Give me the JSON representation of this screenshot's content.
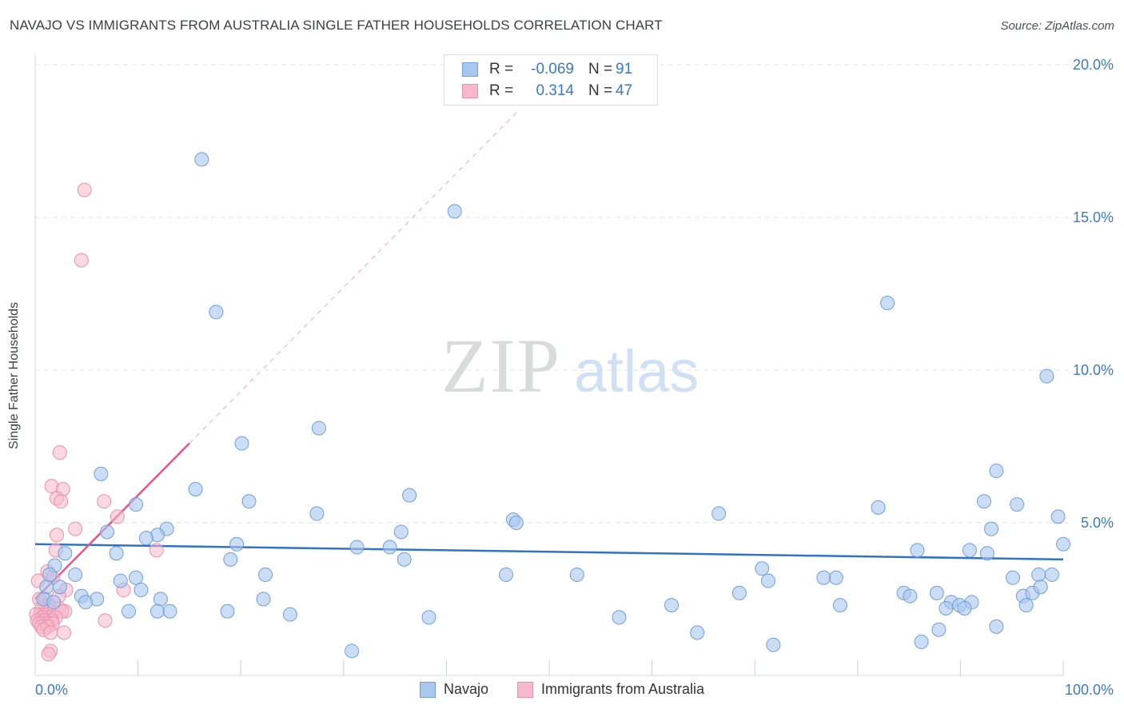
{
  "title": "NAVAJO VS IMMIGRANTS FROM AUSTRALIA SINGLE FATHER HOUSEHOLDS CORRELATION CHART",
  "source": "Source: ZipAtlas.com",
  "watermark": {
    "zip": "ZIP",
    "atlas": "atlas"
  },
  "legend": {
    "rows": [
      {
        "r_label": "R =",
        "r_value": "-0.069",
        "n_label": "N =",
        "n_value": "91"
      },
      {
        "r_label": "R =",
        "r_value": "0.314",
        "n_label": "N =",
        "n_value": "47"
      }
    ]
  },
  "bottom_legend": {
    "navajo": "Navajo",
    "australia": "Immigrants from Australia"
  },
  "colors": {
    "navajo_fill": "#a9c6ee",
    "navajo_stroke": "#6f9fd8",
    "navajo_line": "#2f72c8",
    "australia_fill": "#f6b8cb",
    "australia_stroke": "#ec8fad",
    "australia_line": "#e8548a",
    "axis_label": "#3a78c9",
    "grid": "#dde1e6"
  },
  "chart_data": {
    "type": "scatter",
    "title": "NAVAJO VS IMMIGRANTS FROM AUSTRALIA SINGLE FATHER HOUSEHOLDS CORRELATION CHART",
    "xlabel": "",
    "ylabel": "Single Father Households",
    "xlim": [
      0,
      100
    ],
    "ylim": [
      0,
      20.5
    ],
    "x_tick_labels": [
      "0.0%",
      "100.0%"
    ],
    "y_ticks": [
      5,
      10,
      15,
      20
    ],
    "y_tick_labels": [
      "5.0%",
      "10.0%",
      "15.0%",
      "20.0%"
    ],
    "series": [
      {
        "name": "Navajo",
        "points": [
          [
            16.2,
            16.9
          ],
          [
            40.8,
            15.2
          ],
          [
            82.9,
            12.2
          ],
          [
            17.6,
            11.9
          ],
          [
            98.4,
            9.8
          ],
          [
            27.6,
            8.1
          ],
          [
            20.1,
            7.6
          ],
          [
            6.4,
            6.6
          ],
          [
            93.5,
            6.7
          ],
          [
            15.6,
            6.1
          ],
          [
            36.4,
            5.9
          ],
          [
            20.8,
            5.7
          ],
          [
            95.5,
            5.6
          ],
          [
            92.3,
            5.7
          ],
          [
            9.8,
            5.6
          ],
          [
            82.0,
            5.5
          ],
          [
            27.4,
            5.3
          ],
          [
            99.5,
            5.2
          ],
          [
            46.5,
            5.1
          ],
          [
            46.8,
            5.0
          ],
          [
            66.5,
            5.3
          ],
          [
            12.8,
            4.8
          ],
          [
            11.9,
            4.6
          ],
          [
            7.0,
            4.7
          ],
          [
            35.6,
            4.7
          ],
          [
            10.8,
            4.5
          ],
          [
            93.0,
            4.8
          ],
          [
            19.6,
            4.3
          ],
          [
            31.3,
            4.2
          ],
          [
            34.5,
            4.2
          ],
          [
            85.8,
            4.1
          ],
          [
            90.9,
            4.1
          ],
          [
            2.9,
            4.0
          ],
          [
            7.9,
            4.0
          ],
          [
            92.6,
            4.0
          ],
          [
            100.0,
            4.3
          ],
          [
            19.0,
            3.8
          ],
          [
            35.9,
            3.8
          ],
          [
            1.9,
            3.6
          ],
          [
            70.7,
            3.5
          ],
          [
            1.4,
            3.3
          ],
          [
            3.9,
            3.3
          ],
          [
            22.4,
            3.3
          ],
          [
            45.8,
            3.3
          ],
          [
            52.7,
            3.3
          ],
          [
            76.7,
            3.2
          ],
          [
            77.9,
            3.2
          ],
          [
            8.3,
            3.1
          ],
          [
            9.8,
            3.2
          ],
          [
            95.1,
            3.2
          ],
          [
            97.6,
            3.3
          ],
          [
            98.9,
            3.3
          ],
          [
            71.3,
            3.1
          ],
          [
            1.1,
            2.9
          ],
          [
            2.4,
            2.9
          ],
          [
            10.3,
            2.8
          ],
          [
            68.5,
            2.7
          ],
          [
            84.5,
            2.7
          ],
          [
            85.1,
            2.6
          ],
          [
            87.7,
            2.7
          ],
          [
            96.1,
            2.6
          ],
          [
            97.0,
            2.7
          ],
          [
            97.8,
            2.9
          ],
          [
            4.5,
            2.6
          ],
          [
            6.0,
            2.5
          ],
          [
            12.2,
            2.5
          ],
          [
            22.2,
            2.5
          ],
          [
            91.1,
            2.4
          ],
          [
            89.1,
            2.4
          ],
          [
            4.9,
            2.4
          ],
          [
            0.8,
            2.5
          ],
          [
            1.8,
            2.4
          ],
          [
            96.4,
            2.3
          ],
          [
            89.9,
            2.3
          ],
          [
            88.6,
            2.2
          ],
          [
            61.9,
            2.3
          ],
          [
            78.3,
            2.3
          ],
          [
            90.4,
            2.2
          ],
          [
            9.1,
            2.1
          ],
          [
            11.9,
            2.1
          ],
          [
            13.1,
            2.1
          ],
          [
            18.7,
            2.1
          ],
          [
            24.8,
            2.0
          ],
          [
            38.3,
            1.9
          ],
          [
            56.8,
            1.9
          ],
          [
            87.9,
            1.5
          ],
          [
            93.5,
            1.6
          ],
          [
            64.4,
            1.4
          ],
          [
            86.2,
            1.1
          ],
          [
            71.8,
            1.0
          ],
          [
            30.8,
            0.8
          ]
        ]
      },
      {
        "name": "Immigrants from Australia",
        "points": [
          [
            4.8,
            15.9
          ],
          [
            4.5,
            13.6
          ],
          [
            2.4,
            7.3
          ],
          [
            1.6,
            6.2
          ],
          [
            2.7,
            6.1
          ],
          [
            2.1,
            5.8
          ],
          [
            2.5,
            5.7
          ],
          [
            6.7,
            5.7
          ],
          [
            8.0,
            5.2
          ],
          [
            3.9,
            4.8
          ],
          [
            2.1,
            4.6
          ],
          [
            11.8,
            4.1
          ],
          [
            2.0,
            4.1
          ],
          [
            1.2,
            3.4
          ],
          [
            0.3,
            3.1
          ],
          [
            1.7,
            3.2
          ],
          [
            3.0,
            2.8
          ],
          [
            2.3,
            2.6
          ],
          [
            8.6,
            2.8
          ],
          [
            0.4,
            2.5
          ],
          [
            1.0,
            2.5
          ],
          [
            1.3,
            2.3
          ],
          [
            2.3,
            2.2
          ],
          [
            1.4,
            2.1
          ],
          [
            0.6,
            2.2
          ],
          [
            2.9,
            2.1
          ],
          [
            2.6,
            2.1
          ],
          [
            0.5,
            2.0
          ],
          [
            0.9,
            2.0
          ],
          [
            1.5,
            1.9
          ],
          [
            0.1,
            2.0
          ],
          [
            0.7,
            1.9
          ],
          [
            2.0,
            1.9
          ],
          [
            1.6,
            1.8
          ],
          [
            0.2,
            1.8
          ],
          [
            0.9,
            1.8
          ],
          [
            6.8,
            1.8
          ],
          [
            1.1,
            1.7
          ],
          [
            0.4,
            1.7
          ],
          [
            1.7,
            1.7
          ],
          [
            0.6,
            1.6
          ],
          [
            1.2,
            1.6
          ],
          [
            0.8,
            1.5
          ],
          [
            2.8,
            1.4
          ],
          [
            1.5,
            1.4
          ],
          [
            1.5,
            0.8
          ],
          [
            1.3,
            0.7
          ]
        ]
      }
    ],
    "trend_lines": [
      {
        "series": "Navajo",
        "x": [
          0,
          100
        ],
        "y": [
          4.3,
          3.8
        ],
        "style": "solid"
      },
      {
        "series": "Immigrants from Australia",
        "x": [
          0,
          15
        ],
        "y": [
          2.5,
          7.6
        ],
        "style": "solid"
      },
      {
        "series": "Immigrants from Australia",
        "x": [
          15,
          47
        ],
        "y": [
          7.6,
          18.5
        ],
        "style": "dashed"
      }
    ]
  }
}
